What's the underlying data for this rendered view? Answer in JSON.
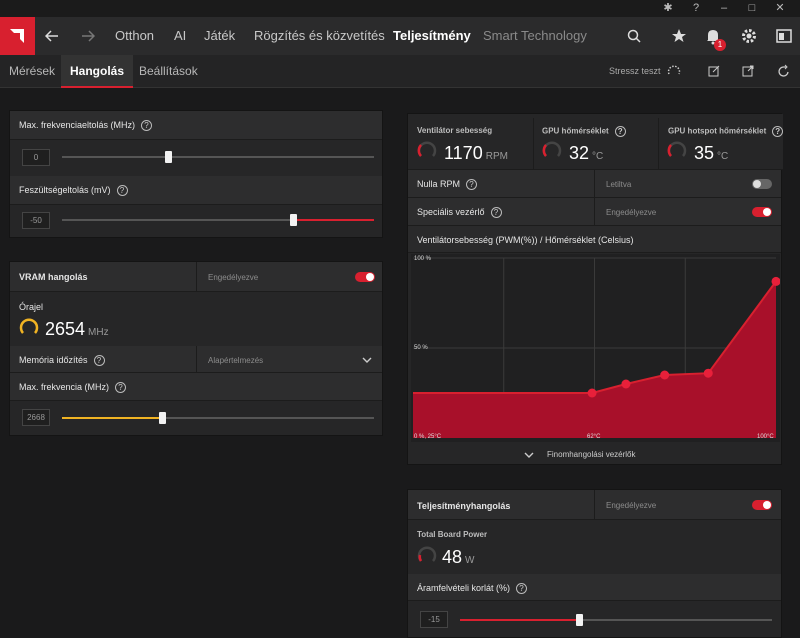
{
  "colors": {
    "accent": "#d8202f",
    "gauge_yellow": "#f0b323",
    "slider_yellow": "#f0b323"
  },
  "topnav": {
    "items": [
      {
        "label": "Otthon"
      },
      {
        "label": "AI"
      },
      {
        "label": "Játék"
      },
      {
        "label": "Rögzítés és közvetítés"
      },
      {
        "label": "Teljesítmény"
      },
      {
        "label": "Smart Technology"
      }
    ],
    "notification_count": "1"
  },
  "subnav": {
    "items": [
      {
        "label": "Mérések"
      },
      {
        "label": "Hangolás"
      },
      {
        "label": "Beállítások"
      }
    ],
    "stress_test": "Stressz teszt"
  },
  "gpu_tuning": {
    "freq_offset": {
      "label": "Max. frekvenciaeltolás (MHz)",
      "value": "0",
      "level": 0.34
    },
    "voltage_offset": {
      "label": "Feszültségeltolás (mV)",
      "value": "-50",
      "level": 0.74
    }
  },
  "vram": {
    "title": "VRAM hangolás",
    "status": "Engedélyezve",
    "clock_label": "Órajel",
    "clock_value": "2654",
    "clock_unit": "MHz",
    "timing": {
      "label": "Memória időzítés",
      "value": "Alapértelmezés"
    },
    "max_freq": {
      "label": "Max. frekvencia (MHz)",
      "value": "2668",
      "level": 0.32
    }
  },
  "fan": {
    "speed": {
      "title": "Ventilátor sebesség",
      "value": "1170",
      "unit": "RPM"
    },
    "gpu_temp": {
      "title": "GPU hőmérséklet",
      "value": "32",
      "unit": "°C"
    },
    "hotspot_temp": {
      "title": "GPU hotspot hőmérséklet",
      "value": "35",
      "unit": "°C"
    },
    "zero_rpm": {
      "label": "Nulla RPM",
      "status": "Letiltva"
    },
    "advanced": {
      "label": "Speciális vezérlő",
      "status": "Engedélyezve"
    },
    "curve_title": "Ventilátorsebesség (PWM(%)) / Hőmérséklet (Celsius)",
    "curve": {
      "y_labels": [
        "100 %",
        "50 %"
      ],
      "x_labels": [
        "0 %, 25°C",
        "62°C",
        "100°C"
      ],
      "points": [
        [
          25,
          25
        ],
        [
          62,
          25
        ],
        [
          69,
          30
        ],
        [
          77,
          35
        ],
        [
          86,
          36
        ],
        [
          100,
          87
        ]
      ]
    },
    "fine_tuning": "Finomhangolási vezérlők"
  },
  "power": {
    "title": "Teljesítményhangolás",
    "status": "Engedélyezve",
    "tbp_title": "Total Board Power",
    "tbp_value": "48",
    "tbp_unit": "W",
    "limit": {
      "label": "Áramfelvételi korlát (%)",
      "value": "-15",
      "level": 0.38
    }
  }
}
